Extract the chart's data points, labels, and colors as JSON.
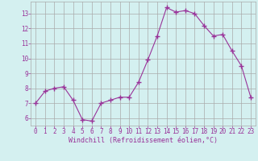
{
  "x": [
    0,
    1,
    2,
    3,
    4,
    5,
    6,
    7,
    8,
    9,
    10,
    11,
    12,
    13,
    14,
    15,
    16,
    17,
    18,
    19,
    20,
    21,
    22,
    23
  ],
  "y": [
    7.0,
    7.8,
    8.0,
    8.1,
    7.2,
    5.9,
    5.8,
    7.0,
    7.2,
    7.4,
    7.4,
    8.4,
    9.9,
    11.5,
    13.4,
    13.1,
    13.2,
    13.0,
    12.2,
    11.5,
    11.6,
    10.5,
    9.5,
    7.4
  ],
  "xlim": [
    -0.5,
    23.5
  ],
  "ylim": [
    5.5,
    13.8
  ],
  "yticks": [
    6,
    7,
    8,
    9,
    10,
    11,
    12,
    13
  ],
  "xticks": [
    0,
    1,
    2,
    3,
    4,
    5,
    6,
    7,
    8,
    9,
    10,
    11,
    12,
    13,
    14,
    15,
    16,
    17,
    18,
    19,
    20,
    21,
    22,
    23
  ],
  "xlabel": "Windchill (Refroidissement éolien,°C)",
  "line_color": "#993399",
  "marker": "+",
  "marker_size": 4,
  "bg_color": "#d4f0f0",
  "grid_color": "#aaaaaa",
  "label_color": "#993399",
  "tick_color": "#993399",
  "font_size": 5.5,
  "xlabel_fontsize": 6.0
}
